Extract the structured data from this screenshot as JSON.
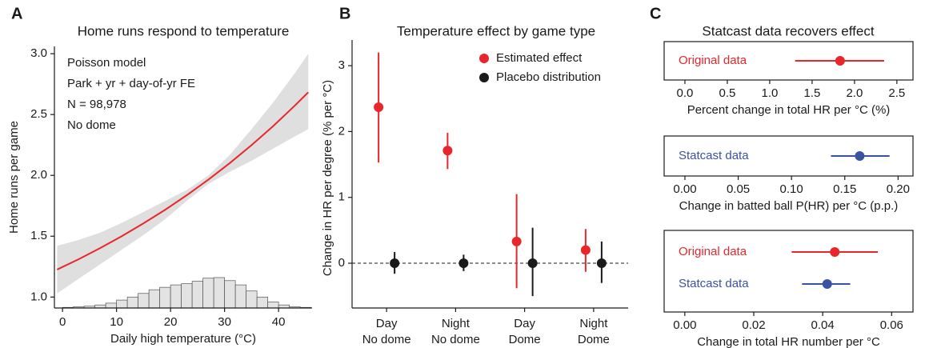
{
  "chart_data": [
    {
      "type": "line",
      "panel_label": "A",
      "title": "Home runs respond to temperature",
      "xlabel": "Daily high temperature (°C)",
      "ylabel": "Home runs per game",
      "annotations": [
        "Poisson model",
        "Park + yr + day-of-yr FE",
        "N = 98,978",
        "No dome"
      ],
      "x": [
        -1,
        3,
        7,
        11,
        15,
        19,
        23,
        27,
        31,
        35,
        39,
        43,
        45.5
      ],
      "values": [
        1.226,
        1.311,
        1.403,
        1.501,
        1.606,
        1.717,
        1.837,
        1.965,
        2.102,
        2.249,
        2.405,
        2.573,
        2.683
      ],
      "color": "#e8262b",
      "band_lower": [
        1.03,
        1.15,
        1.27,
        1.39,
        1.51,
        1.64,
        1.79,
        1.93,
        2.03,
        2.12,
        2.22,
        2.32,
        2.38
      ],
      "band_upper": [
        1.42,
        1.47,
        1.53,
        1.61,
        1.7,
        1.79,
        1.88,
        2.0,
        2.17,
        2.38,
        2.6,
        2.84,
        3.0
      ],
      "band_color": "#d9d9d9",
      "hist_bins": [
        0,
        2,
        4,
        6,
        8,
        10,
        12,
        14,
        16,
        18,
        20,
        22,
        24,
        26,
        28,
        30,
        32,
        34,
        36,
        38,
        40,
        42,
        44,
        46
      ],
      "hist_counts": [
        0.915,
        0.92,
        0.925,
        0.935,
        0.95,
        0.975,
        1.0,
        1.03,
        1.06,
        1.08,
        1.1,
        1.11,
        1.13,
        1.155,
        1.16,
        1.135,
        1.1,
        1.05,
        1.0,
        0.96,
        0.935,
        0.92,
        0.915
      ],
      "hist_color": "#e3e3e3",
      "xlim": [
        -1.5,
        46.2
      ],
      "xticks": [
        0,
        10,
        20,
        30,
        40
      ],
      "ylim": [
        0.91,
        3.06
      ],
      "yticks": [
        {
          "value": 1,
          "label": "1.0"
        },
        1.5,
        {
          "value": 2,
          "label": "2.0"
        },
        2.5,
        {
          "value": 3,
          "label": "3.0"
        }
      ]
    },
    {
      "type": "pointrange",
      "panel_label": "B",
      "title": "Temperature effect by game type",
      "ylabel": "Change in HR per degree (% per °C)",
      "categories": [
        [
          "Day",
          "No dome"
        ],
        [
          "Night",
          "No dome"
        ],
        [
          "Day",
          "Dome"
        ],
        [
          "Night",
          "Dome"
        ]
      ],
      "series": [
        {
          "name": "Estimated effect",
          "color": "#e8262b",
          "values": [
            2.37,
            1.71,
            0.33,
            0.2
          ],
          "ci_low": [
            1.53,
            1.43,
            -0.38,
            -0.13
          ],
          "ci_high": [
            3.2,
            1.98,
            1.05,
            0.52
          ]
        },
        {
          "name": "Placebo distribution",
          "color": "#1a1a1a",
          "values": [
            0,
            0,
            0,
            0
          ],
          "ci_low": [
            -0.16,
            -0.12,
            -0.5,
            -0.3
          ],
          "ci_high": [
            0.17,
            0.13,
            0.54,
            0.33
          ]
        }
      ],
      "reference_line": 0,
      "legend": "upper right",
      "ylim": [
        -0.68,
        3.39
      ],
      "yticks": [
        0,
        1,
        2,
        3
      ]
    },
    {
      "type": "forest",
      "panel_label": "C",
      "title": "Statcast data recovers effect",
      "xlabel": "Percent change in total HR per °C (%)",
      "series": [
        {
          "name": "Original data",
          "color": "#e8262b",
          "values": [
            1.83
          ],
          "ci_low": [
            1.3
          ],
          "ci_high": [
            2.35
          ]
        }
      ],
      "xlim": [
        -0.245,
        2.69
      ],
      "xticks": [
        {
          "value": 0,
          "label": "0.0"
        },
        0.5,
        {
          "value": 1,
          "label": "1.0"
        },
        1.5,
        {
          "value": 2,
          "label": "2.0"
        },
        2.5
      ]
    },
    {
      "type": "forest",
      "xlabel": "Change in batted ball P(HR) per °C (p.p.)",
      "series": [
        {
          "name": "Statcast data",
          "color": "#3a52a4",
          "values": [
            0.164
          ],
          "ci_low": [
            0.137
          ],
          "ci_high": [
            0.192
          ]
        }
      ],
      "xlim": [
        -0.0195,
        0.214
      ],
      "xticks": [
        {
          "value": 0,
          "label": "0.00"
        },
        0.05,
        {
          "value": 0.1,
          "label": "0.10"
        },
        0.15,
        {
          "value": 0.2,
          "label": "0.20"
        }
      ]
    },
    {
      "type": "forest",
      "xlabel": "Change in total HR number per °C",
      "series": [
        {
          "name": "Original data",
          "color": "#e8262b",
          "values": [
            0.0435
          ],
          "ci_low": [
            0.031
          ],
          "ci_high": [
            0.056
          ]
        },
        {
          "name": "Statcast data",
          "color": "#3a52a4",
          "values": [
            0.0413
          ],
          "ci_low": [
            0.034
          ],
          "ci_high": [
            0.048
          ]
        }
      ],
      "xlim": [
        -0.006,
        0.0662
      ],
      "xticks": [
        {
          "value": 0,
          "label": "0.00"
        },
        {
          "value": 0.02,
          "label": "0.02"
        },
        {
          "value": 0.04,
          "label": "0.04"
        },
        {
          "value": 0.06,
          "label": "0.06"
        }
      ]
    }
  ]
}
